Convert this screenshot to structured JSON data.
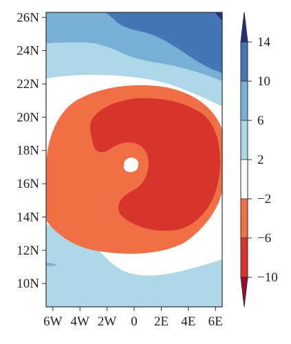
{
  "chart_data": {
    "type": "heatmap",
    "subtype": "filled-contour",
    "title": "",
    "xlabel": "",
    "ylabel": "",
    "xlim": [
      -6.5,
      6.5
    ],
    "ylim": [
      8.6,
      26.3
    ],
    "grid": false,
    "x_ticks": [
      {
        "value": -6,
        "label": "6W"
      },
      {
        "value": -4,
        "label": "4W"
      },
      {
        "value": -2,
        "label": "2W"
      },
      {
        "value": 0,
        "label": "0"
      },
      {
        "value": 2,
        "label": "2E"
      },
      {
        "value": 4,
        "label": "4E"
      },
      {
        "value": 6,
        "label": "6E"
      }
    ],
    "y_ticks": [
      {
        "value": 10,
        "label": "10N"
      },
      {
        "value": 12,
        "label": "12N"
      },
      {
        "value": 14,
        "label": "14N"
      },
      {
        "value": 16,
        "label": "16N"
      },
      {
        "value": 18,
        "label": "18N"
      },
      {
        "value": 20,
        "label": "20N"
      },
      {
        "value": 22,
        "label": "22N"
      },
      {
        "value": 24,
        "label": "24N"
      },
      {
        "value": 26,
        "label": "26N"
      }
    ],
    "colorbar": {
      "position": "right",
      "orientation": "vertical",
      "extend": "both",
      "levels": [
        -10,
        -6,
        -2,
        2,
        6,
        10,
        14
      ],
      "labels": [
        "−10",
        "−6",
        "−2",
        "2",
        "6",
        "10",
        "14"
      ],
      "bins": [
        {
          "range": "<-10",
          "color": "#9d0a2e"
        },
        {
          "range": "-10 to -6",
          "color": "#d7352b"
        },
        {
          "range": "-6 to -2",
          "color": "#f06f45"
        },
        {
          "range": "-2 to 2",
          "color": "#ffffff"
        },
        {
          "range": "2 to 6",
          "color": "#aed8e8"
        },
        {
          "range": "6 to 10",
          "color": "#78afd4"
        },
        {
          "range": "10 to 14",
          "color": "#4475b4"
        },
        {
          "range": ">14",
          "color": "#24307e"
        }
      ]
    },
    "regions": [
      {
        "name": "strong-positive",
        "range": "10 to 14",
        "location": "upper right"
      },
      {
        "name": "moderate-positive",
        "range": "6 to 10",
        "location": "upper half, top"
      },
      {
        "name": "weak-positive",
        "range": "2 to 6",
        "location": "top band and southern band"
      },
      {
        "name": "near-neutral",
        "range": "-2 to 2",
        "location": "bands surrounding negative core"
      },
      {
        "name": "moderate-negative",
        "range": "-6 to -2",
        "location": "broad circular region centered near 17N, 1E"
      },
      {
        "name": "strong-negative",
        "range": "-10 to -6",
        "location": "inner core around 16N to 21N, 2W to 6E"
      }
    ]
  }
}
